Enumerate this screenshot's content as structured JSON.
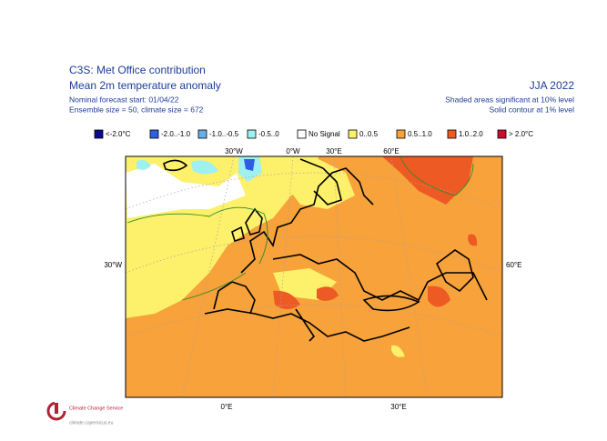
{
  "header": {
    "title": "C3S: Met Office contribution",
    "subtitle": "Mean 2m temperature anomaly",
    "forecast_start": "Nominal forecast start: 01/04/22",
    "ensemble": "Ensemble size = 50, climate size = 672",
    "season": "JJA 2022",
    "note_shading": "Shaded areas significant at 10% level",
    "note_contour": "Solid contour at 1% level"
  },
  "legend": [
    {
      "label": "<-2.0°C",
      "color": "#0a0a8c"
    },
    {
      "label": "-2.0..-1.0",
      "color": "#2f5fe0"
    },
    {
      "label": "-1.0..-0.5",
      "color": "#6aaee8"
    },
    {
      "label": "-0.5..0",
      "color": "#9ff0f0"
    },
    {
      "label": "No Signal",
      "color": "#ffffff"
    },
    {
      "label": "0..0.5",
      "color": "#fdf06a"
    },
    {
      "label": "0.5..1.0",
      "color": "#f7a23a"
    },
    {
      "label": "1.0..2.0",
      "color": "#ee5a23"
    },
    {
      "label": "> 2.0°C",
      "color": "#c8102e"
    }
  ],
  "map_labels": {
    "top": [
      "30°W",
      "0°W",
      "30°E",
      "60°E"
    ],
    "left": "30°W",
    "right": "60°E",
    "bottom": [
      "0°E",
      "30°E"
    ]
  },
  "logo": {
    "name": "Climate Change Service",
    "url": "climate.copernicus.eu"
  }
}
